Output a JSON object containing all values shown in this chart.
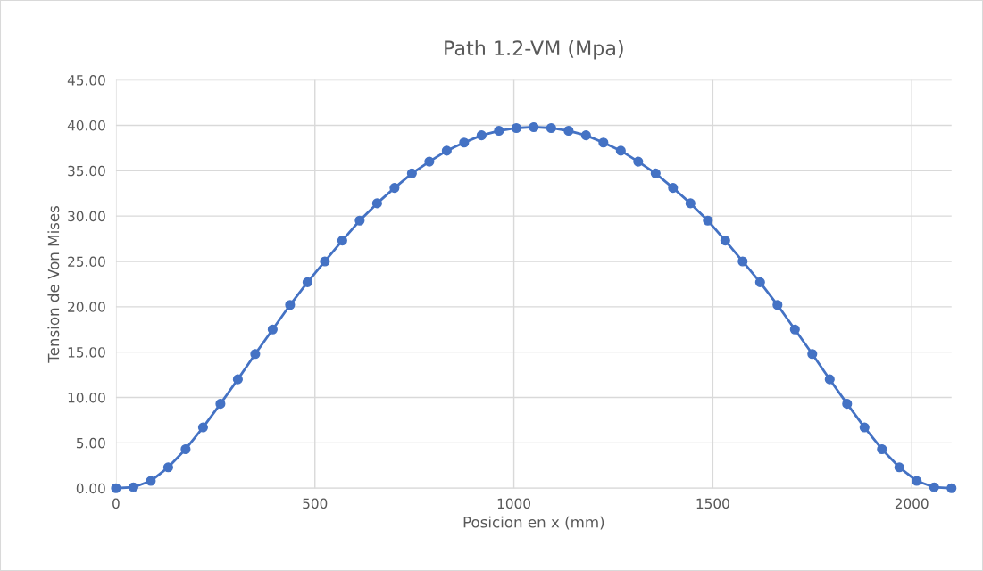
{
  "chart_data": {
    "type": "line",
    "title": "Path 1.2-VM (Mpa)",
    "xlabel": "Posicion en x (mm)",
    "ylabel": "Tension de Von Mises",
    "x": [
      0,
      43.75,
      87.5,
      131.25,
      175,
      218.75,
      262.5,
      306.25,
      350,
      393.75,
      437.5,
      481.25,
      525,
      568.75,
      612.5,
      656.25,
      700,
      743.75,
      787.5,
      831.25,
      875,
      918.75,
      962.5,
      1006.25,
      1050,
      1093.75,
      1137.5,
      1181.25,
      1225,
      1268.75,
      1312.5,
      1356.25,
      1400,
      1443.75,
      1487.5,
      1531.25,
      1575,
      1618.75,
      1662.5,
      1706.25,
      1750,
      1793.75,
      1837.5,
      1881.25,
      1925,
      1968.75,
      2012.5,
      2056.25,
      2100
    ],
    "series": [
      {
        "color": "#4472c4",
        "values": [
          0,
          0.1,
          0.8,
          2.3,
          4.3,
          6.7,
          9.3,
          12.0,
          14.8,
          17.5,
          20.2,
          22.7,
          25.0,
          27.3,
          29.5,
          31.4,
          33.1,
          34.7,
          36.0,
          37.2,
          38.1,
          38.9,
          39.4,
          39.7,
          39.8,
          39.7,
          39.4,
          38.9,
          38.1,
          37.2,
          36.0,
          34.7,
          33.1,
          31.4,
          29.5,
          27.3,
          25.0,
          22.7,
          20.2,
          17.5,
          14.8,
          12.0,
          9.3,
          6.7,
          4.3,
          2.3,
          0.8,
          0.1,
          0
        ]
      }
    ],
    "xlim": [
      0,
      2100
    ],
    "xticks": [
      0,
      500,
      1000,
      1500,
      2000
    ],
    "ylim": [
      0,
      45
    ],
    "yticks": [
      {
        "value": 0,
        "label": "0.00"
      },
      {
        "value": 5,
        "label": "5.00"
      },
      {
        "value": 10,
        "label": "10.00"
      },
      {
        "value": 15,
        "label": "15.00"
      },
      {
        "value": 20,
        "label": "20.00"
      },
      {
        "value": 25,
        "label": "25.00"
      },
      {
        "value": 30,
        "label": "30.00"
      },
      {
        "value": 35,
        "label": "35.00"
      },
      {
        "value": 40,
        "label": "40.00"
      },
      {
        "value": 45,
        "label": "45.00"
      }
    ],
    "grid": true,
    "marker": "circle",
    "line_style": "solid"
  }
}
